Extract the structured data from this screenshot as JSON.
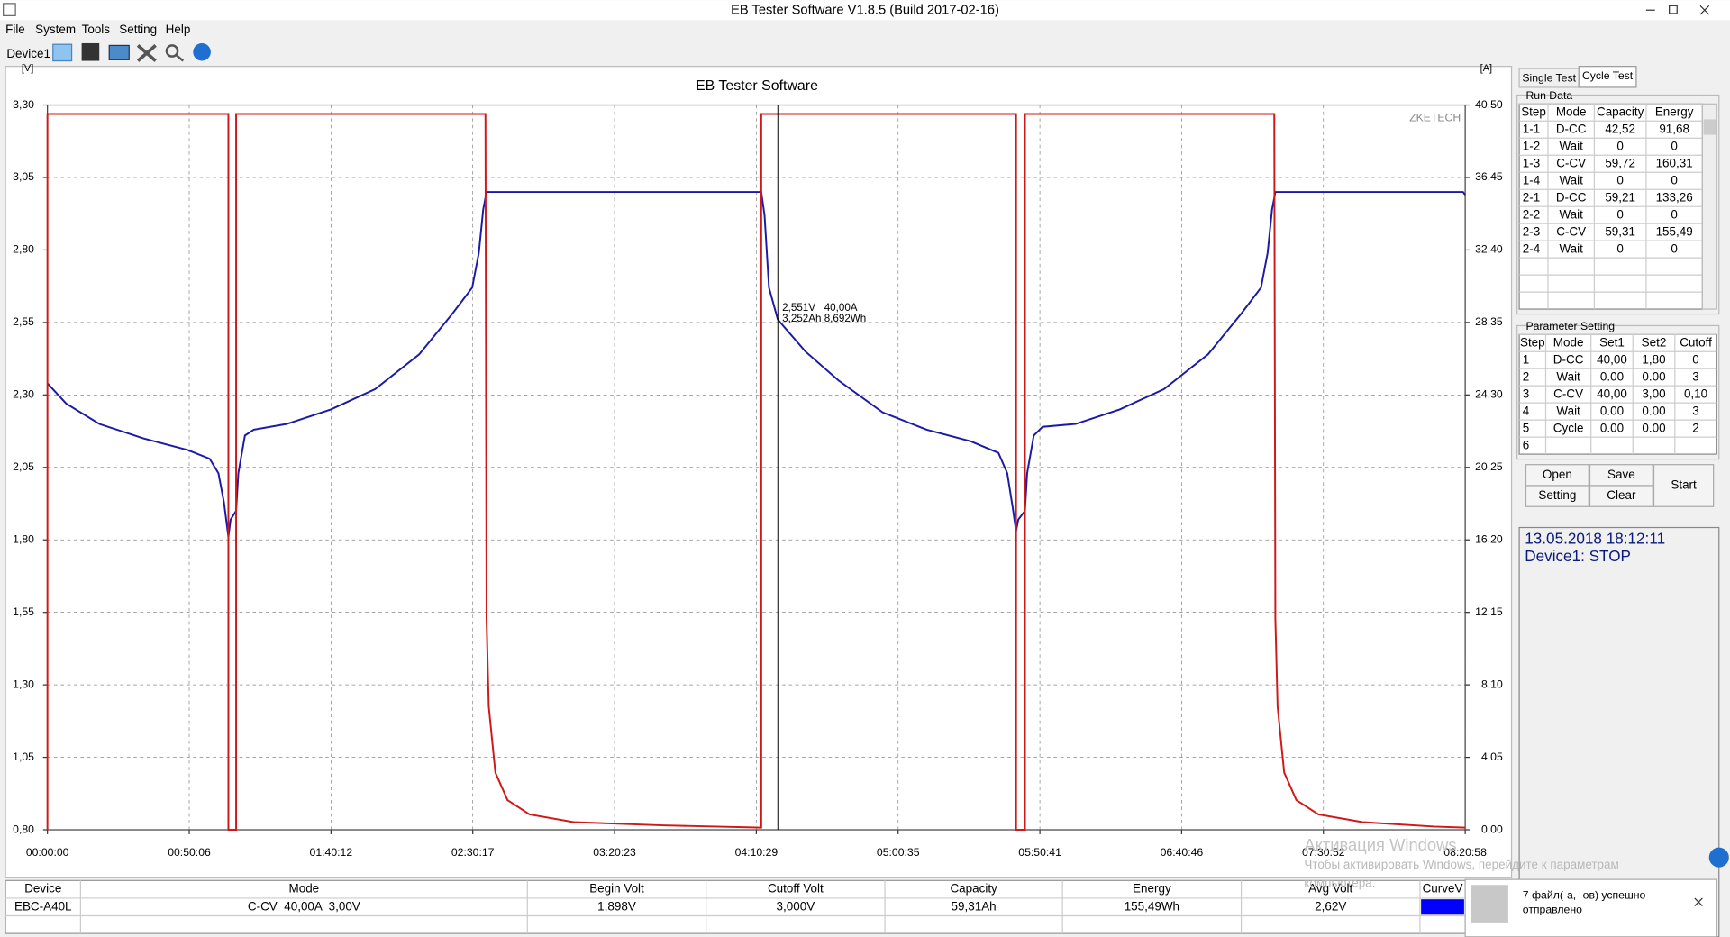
{
  "window": {
    "title": "EB Tester Software V1.8.5 (Build 2017-02-16)"
  },
  "menu": [
    "File",
    "System",
    "Tools",
    "Setting",
    "Help"
  ],
  "toolbar": {
    "device": "Device1"
  },
  "chart_data": {
    "type": "line",
    "title": "EB Tester Software",
    "watermark": "ZKETECH",
    "ylabel": "[V]",
    "y2label": "[A]",
    "grid": true,
    "annotations": [
      "2,551V   40,00A",
      "3,252Ah 8,692Wh"
    ],
    "xlim": [
      0,
      30058
    ],
    "xticks": [
      {
        "value": 0,
        "label": "00:00:00"
      },
      {
        "value": 3006,
        "label": "00:50:06"
      },
      {
        "value": 6012,
        "label": "01:40:12"
      },
      {
        "value": 9017,
        "label": "02:30:17"
      },
      {
        "value": 12023,
        "label": "03:20:23"
      },
      {
        "value": 15029,
        "label": "04:10:29"
      },
      {
        "value": 18035,
        "label": "05:00:35"
      },
      {
        "value": 21041,
        "label": "05:50:41"
      },
      {
        "value": 24046,
        "label": "06:40:46"
      },
      {
        "value": 27052,
        "label": "07:30:52"
      },
      {
        "value": 30058,
        "label": "08:20:58"
      }
    ],
    "ylim": [
      0.8,
      3.3
    ],
    "yticks": [
      {
        "value": 0.8,
        "label": "0,80"
      },
      {
        "value": 1.05,
        "label": "1,05"
      },
      {
        "value": 1.3,
        "label": "1,30"
      },
      {
        "value": 1.55,
        "label": "1,55"
      },
      {
        "value": 1.8,
        "label": "1,80"
      },
      {
        "value": 2.05,
        "label": "2,05"
      },
      {
        "value": 2.3,
        "label": "2,30"
      },
      {
        "value": 2.55,
        "label": "2,55"
      },
      {
        "value": 2.8,
        "label": "2,80"
      },
      {
        "value": 3.05,
        "label": "3,05"
      },
      {
        "value": 3.3,
        "label": "3,30"
      }
    ],
    "y2lim": [
      0,
      40.5
    ],
    "y2ticks": [
      {
        "value": 0,
        "label": "0,00"
      },
      {
        "value": 4.05,
        "label": "4,05"
      },
      {
        "value": 8.1,
        "label": "8,10"
      },
      {
        "value": 12.15,
        "label": "12,15"
      },
      {
        "value": 16.2,
        "label": "16,20"
      },
      {
        "value": 20.25,
        "label": "20,25"
      },
      {
        "value": 24.3,
        "label": "24,30"
      },
      {
        "value": 28.35,
        "label": "28,35"
      },
      {
        "value": 32.4,
        "label": "32,40"
      },
      {
        "value": 36.45,
        "label": "36,45"
      },
      {
        "value": 40.5,
        "label": "40,50"
      }
    ],
    "series": [
      {
        "color": "#1a1aa6",
        "axis": "y",
        "x": [
          0,
          398,
          1099,
          2035,
          2971,
          3438,
          3625,
          3742,
          3836,
          3883,
          4000,
          4047,
          4187,
          4374,
          5076,
          6011,
          6947,
          7882,
          8584,
          9005,
          9146,
          9239,
          9309,
          15133,
          15203,
          15297,
          15484,
          16069,
          16771,
          17706,
          18642,
          19577,
          20162,
          20349,
          20466,
          20536,
          20583,
          20724,
          20771,
          20911,
          21098,
          21800,
          22735,
          23671,
          24606,
          25308,
          25729,
          25869,
          25963,
          26033,
          30011,
          30058
        ],
        "values": [
          2.34,
          2.27,
          2.2,
          2.15,
          2.11,
          2.08,
          2.03,
          1.93,
          1.81,
          1.87,
          1.9,
          2.03,
          2.16,
          2.18,
          2.2,
          2.25,
          2.32,
          2.44,
          2.58,
          2.67,
          2.79,
          2.94,
          3.0,
          3.0,
          2.92,
          2.67,
          2.56,
          2.45,
          2.35,
          2.24,
          2.18,
          2.14,
          2.1,
          2.03,
          1.91,
          1.83,
          1.87,
          1.9,
          2.03,
          2.16,
          2.19,
          2.2,
          2.25,
          2.32,
          2.44,
          2.58,
          2.67,
          2.79,
          2.94,
          3.0,
          3.0,
          2.99
        ]
      },
      {
        "color": "#d01818",
        "axis": "y2",
        "x": [
          0,
          0,
          3836,
          3836,
          4000,
          4000,
          9286,
          9309,
          9356,
          9496,
          9754,
          10221,
          11157,
          13028,
          15133,
          15133,
          20536,
          20536,
          20724,
          20724,
          26010,
          26033,
          26080,
          26220,
          26478,
          26946,
          27882,
          29402,
          30058
        ],
        "values": [
          0,
          40,
          40,
          0,
          0,
          40,
          40,
          11.8,
          6.9,
          3.2,
          1.66,
          0.86,
          0.43,
          0.25,
          0.12,
          40,
          40,
          0,
          0,
          40,
          40,
          11.8,
          6.9,
          3.2,
          1.66,
          0.86,
          0.43,
          0.18,
          0.12
        ]
      }
    ]
  },
  "tabs": [
    "Single Test",
    "Cycle Test"
  ],
  "run_data": {
    "title": "Run Data",
    "columns": [
      "Step",
      "Mode",
      "Capacity",
      "Energy"
    ],
    "rows": [
      [
        "1-1",
        "D-CC",
        "42,52",
        "91,68"
      ],
      [
        "1-2",
        "Wait",
        "0",
        "0"
      ],
      [
        "1-3",
        "C-CV",
        "59,72",
        "160,31"
      ],
      [
        "1-4",
        "Wait",
        "0",
        "0"
      ],
      [
        "2-1",
        "D-CC",
        "59,21",
        "133,26"
      ],
      [
        "2-2",
        "Wait",
        "0",
        "0"
      ],
      [
        "2-3",
        "C-CV",
        "59,31",
        "155,49"
      ],
      [
        "2-4",
        "Wait",
        "0",
        "0"
      ]
    ]
  },
  "parameter_setting": {
    "title": "Parameter Setting",
    "columns": [
      "Step",
      "Mode",
      "Set1",
      "Set2",
      "Cutoff"
    ],
    "rows": [
      [
        "1",
        "D-CC",
        "40,00",
        "1,80",
        "0"
      ],
      [
        "2",
        "Wait",
        "0.00",
        "0.00",
        "3"
      ],
      [
        "3",
        "C-CV",
        "40,00",
        "3,00",
        "0,10"
      ],
      [
        "4",
        "Wait",
        "0.00",
        "0.00",
        "3"
      ],
      [
        "5",
        "Cycle",
        "0.00",
        "0.00",
        "2"
      ],
      [
        "6"
      ]
    ]
  },
  "buttons": [
    "Open",
    "Save",
    "Setting",
    "Clear",
    "Start"
  ],
  "status": {
    "datetime": "13.05.2018 18:12:11",
    "device_state": "Device1: STOP"
  },
  "bottom_table": {
    "columns": [
      "Device",
      "Mode",
      "Begin Volt",
      "Cutoff Volt",
      "Capacity",
      "Energy",
      "Avg Volt",
      "CurveV"
    ],
    "row": [
      "EBC-A40L",
      "C-CV  40,00A  3,00V",
      "1,898V",
      "3,000V",
      "59,31Ah",
      "155,49Wh",
      "2,62V"
    ]
  },
  "os_watermark": [
    "Активация Windows",
    "Чтобы активировать Windows, перейдите к параметрам",
    "компьютера."
  ],
  "notification": [
    "7 файл(-а, -ов) успешно",
    "отправлено"
  ]
}
